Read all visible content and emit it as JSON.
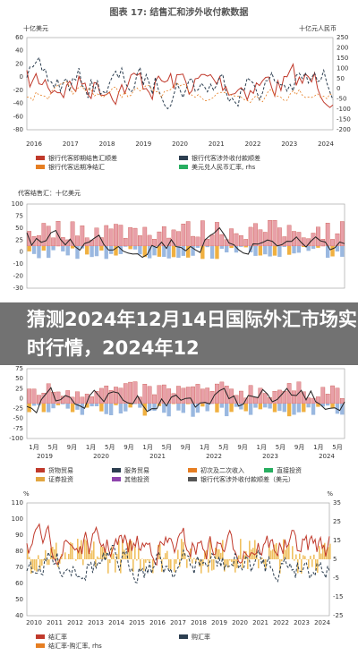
{
  "overlay_title": "猜测2024年12月14日国际外汇市场实时行情，2024年12",
  "panels": [
    {
      "title": "图表 17: 结售汇和涉外收付款数据",
      "left_unit": "十亿美元",
      "right_unit": "十亿元人民币",
      "left_ticks": [
        60,
        40,
        20,
        0,
        -20,
        -40,
        -60,
        -80
      ],
      "right_ticks": [
        250,
        200,
        150,
        100,
        50,
        0,
        -50,
        -100,
        -150,
        -200
      ],
      "x_labels": [
        "2016",
        "2017",
        "2018",
        "2019",
        "2020",
        "2021",
        "2022",
        "2023",
        "2024"
      ],
      "legend": [
        "银行代客即期结售汇顺差",
        "银行代客涉外收付款顺差",
        "银行代客远期净结汇",
        "美元兑人民币汇率, rhs"
      ]
    },
    {
      "title": "代客结售汇：十亿美元",
      "left_ticks": [
        100,
        75,
        50,
        25,
        0,
        -10,
        -20,
        -30
      ]
    },
    {
      "left_ticks": [
        75,
        50,
        25,
        0,
        -25,
        -50,
        -75,
        -100
      ],
      "x_labels": [
        "1月",
        "5月",
        "9月",
        "1月",
        "5月",
        "9月",
        "1月",
        "5月",
        "9月",
        "1月",
        "5月",
        "9月",
        "1月",
        "5月",
        "9月",
        "1月",
        "5月"
      ],
      "years": [
        "2019",
        "2020",
        "2021",
        "2022",
        "2023",
        "2024"
      ],
      "legend": [
        "货物贸易",
        "服务贸易",
        "初次及二次收入",
        "直接投资",
        "证券投资",
        "其他投资",
        "银行代客涉外收付款顺差（美元）"
      ]
    },
    {
      "left_unit": "%",
      "right_unit": "%",
      "left_ticks": [
        110,
        100,
        90,
        80,
        70,
        60,
        50,
        40
      ],
      "right_ticks": [
        35,
        25,
        15,
        5,
        -5,
        -15,
        -25
      ],
      "x_labels": [
        "2010",
        "2011",
        "2012",
        "2013",
        "2014",
        "2015",
        "2016",
        "2017",
        "2018",
        "2019",
        "2020",
        "2021",
        "2022",
        "2023",
        "2024"
      ],
      "legend": [
        "结汇率",
        "购汇率",
        "结汇率-购汇率, rhs"
      ]
    }
  ]
}
